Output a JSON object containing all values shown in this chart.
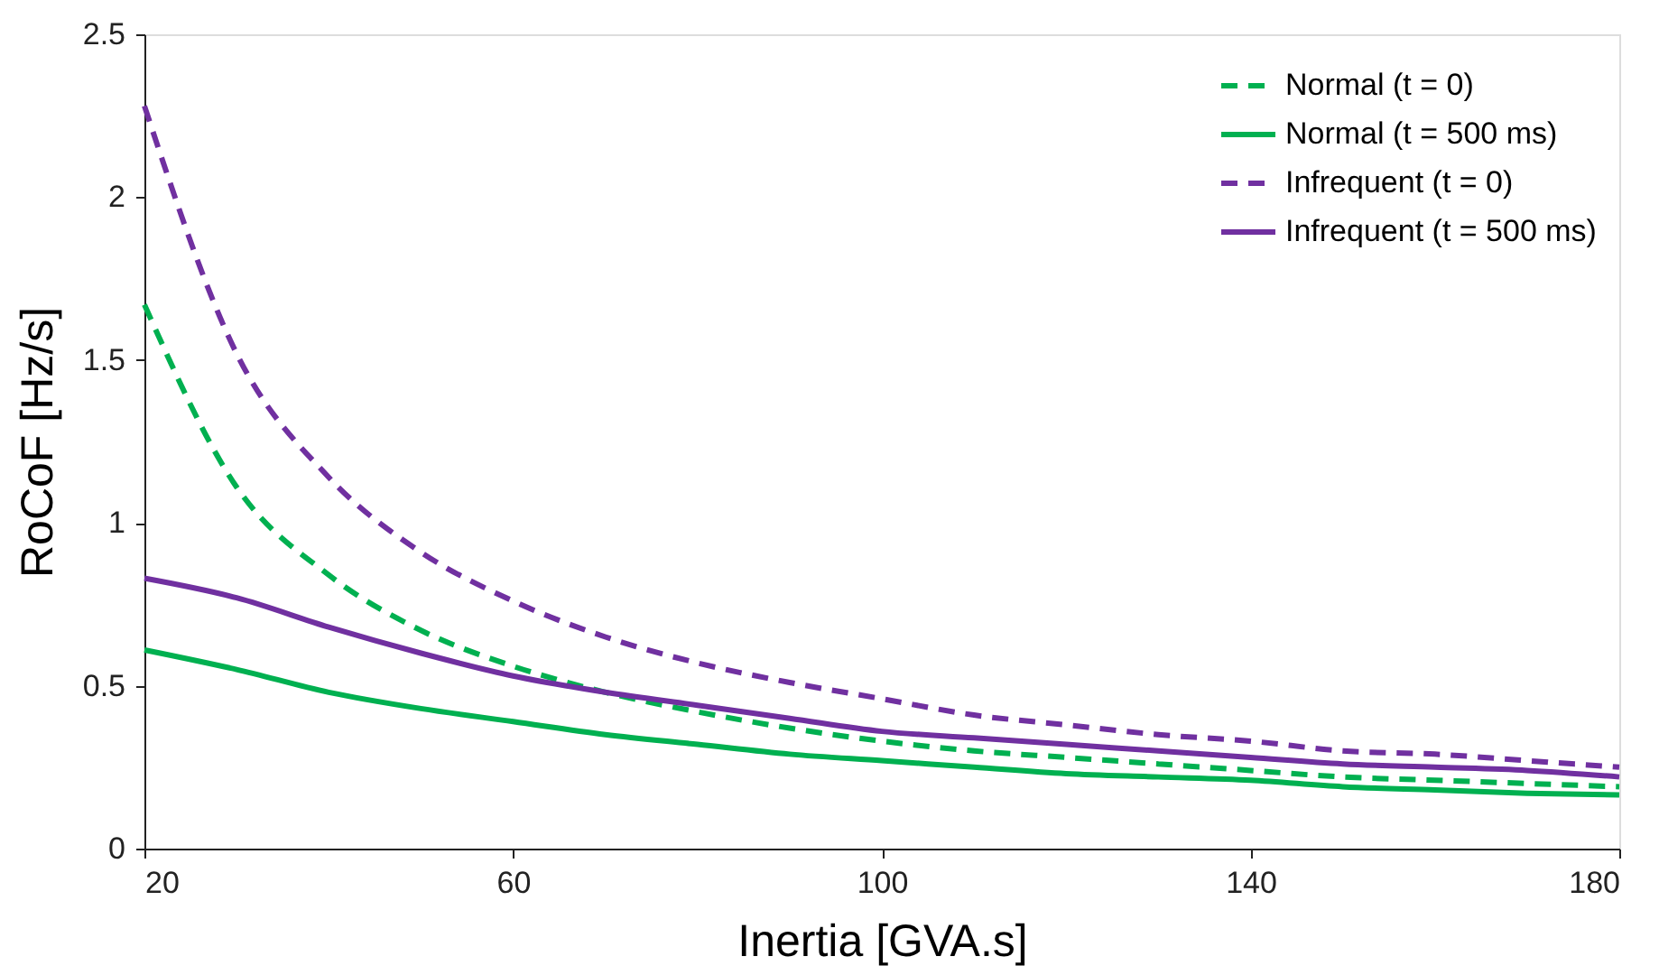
{
  "chart_data": {
    "type": "line",
    "xlabel": "Inertia [GVA.s]",
    "ylabel": "RoCoF [Hz/s]",
    "x": [
      20,
      30,
      40,
      50,
      60,
      70,
      80,
      90,
      100,
      110,
      120,
      130,
      140,
      150,
      160,
      170,
      180
    ],
    "series": [
      {
        "name": "Normal (t = 0)",
        "color": "#00b050",
        "line_style": "dashed",
        "values": [
          1.67,
          1.11,
          0.84,
          0.67,
          0.56,
          0.48,
          0.42,
          0.37,
          0.33,
          0.3,
          0.28,
          0.26,
          0.24,
          0.22,
          0.21,
          0.2,
          0.19
        ]
      },
      {
        "name": "Normal (t = 500 ms)",
        "color": "#00b050",
        "line_style": "solid",
        "values": [
          0.61,
          0.55,
          0.48,
          0.43,
          0.39,
          0.35,
          0.32,
          0.29,
          0.27,
          0.25,
          0.23,
          0.22,
          0.21,
          0.19,
          0.18,
          0.17,
          0.165
        ]
      },
      {
        "name": "Infrequent (t = 0)",
        "color": "#7030a0",
        "line_style": "dashed",
        "values": [
          2.28,
          1.52,
          1.14,
          0.91,
          0.76,
          0.65,
          0.57,
          0.51,
          0.46,
          0.41,
          0.38,
          0.35,
          0.33,
          0.3,
          0.29,
          0.27,
          0.25
        ]
      },
      {
        "name": "Infrequent (t = 500 ms)",
        "color": "#7030a0",
        "line_style": "solid",
        "values": [
          0.83,
          0.77,
          0.68,
          0.6,
          0.53,
          0.48,
          0.44,
          0.4,
          0.36,
          0.34,
          0.32,
          0.3,
          0.28,
          0.26,
          0.25,
          0.24,
          0.22
        ]
      }
    ],
    "xlim": [
      20,
      180
    ],
    "xticks": [
      20,
      60,
      100,
      140,
      180
    ],
    "ylim": [
      0,
      2.5
    ],
    "yticks": [
      0,
      0.5,
      1,
      1.5,
      2,
      2.5
    ],
    "grid": false,
    "legend": "top right",
    "marker": "none"
  }
}
